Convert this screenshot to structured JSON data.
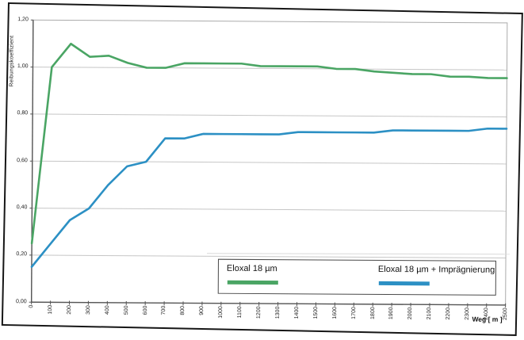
{
  "chart_data": {
    "type": "line",
    "title": "",
    "xlabel": "Weg [ m ]",
    "ylabel": "Reibungskoeffizient",
    "xlim": [
      0,
      2500
    ],
    "ylim": [
      0,
      1.2
    ],
    "grid": "horizontal",
    "legend_position": "bottom-inside",
    "x": [
      0,
      100,
      200,
      300,
      400,
      500,
      600,
      700,
      800,
      900,
      1000,
      1100,
      1200,
      1300,
      1400,
      1500,
      1600,
      1700,
      1800,
      1900,
      2000,
      2100,
      2200,
      2300,
      2400,
      2500
    ],
    "xtick_labels": [
      "0",
      "100",
      "200",
      "300",
      "400",
      "500",
      "600",
      "700",
      "800",
      "900",
      "1000",
      "1100",
      "1200",
      "1300",
      "1400",
      "1500",
      "1600",
      "1700",
      "1800",
      "1900",
      "2000",
      "2100",
      "2200",
      "2300",
      "2400",
      "2500"
    ],
    "yticks": {
      "values": [
        0,
        0.2,
        0.4,
        0.6,
        0.8,
        1.0,
        1.2
      ],
      "labels": [
        "0,00",
        "0,20",
        "0,40",
        "0,60",
        "0,80",
        "1,00",
        "1,20"
      ]
    },
    "series": [
      {
        "name": "Eloxal 18 µm",
        "color": "#4aa564",
        "values": [
          0.25,
          1.0,
          1.1,
          1.045,
          1.05,
          1.02,
          1.0,
          1.0,
          1.02,
          1.02,
          1.02,
          1.02,
          1.01,
          1.01,
          1.01,
          1.01,
          1.0,
          1.0,
          0.99,
          0.985,
          0.98,
          0.98,
          0.97,
          0.97,
          0.965,
          0.965
        ]
      },
      {
        "name": "Eloxal 18 µm + Imprägnierung",
        "color": "#2c90c4",
        "values": [
          0.15,
          0.25,
          0.35,
          0.4,
          0.5,
          0.58,
          0.6,
          0.7,
          0.7,
          0.72,
          0.72,
          0.72,
          0.72,
          0.72,
          0.73,
          0.73,
          0.73,
          0.73,
          0.73,
          0.74,
          0.74,
          0.74,
          0.74,
          0.74,
          0.75,
          0.75
        ]
      }
    ],
    "style": {
      "gridline_color": "#c6c6c6",
      "plot_border_color": "#ababab",
      "axis_color": "#555555",
      "frame_color": "#161616",
      "line_width": 2.6
    }
  }
}
